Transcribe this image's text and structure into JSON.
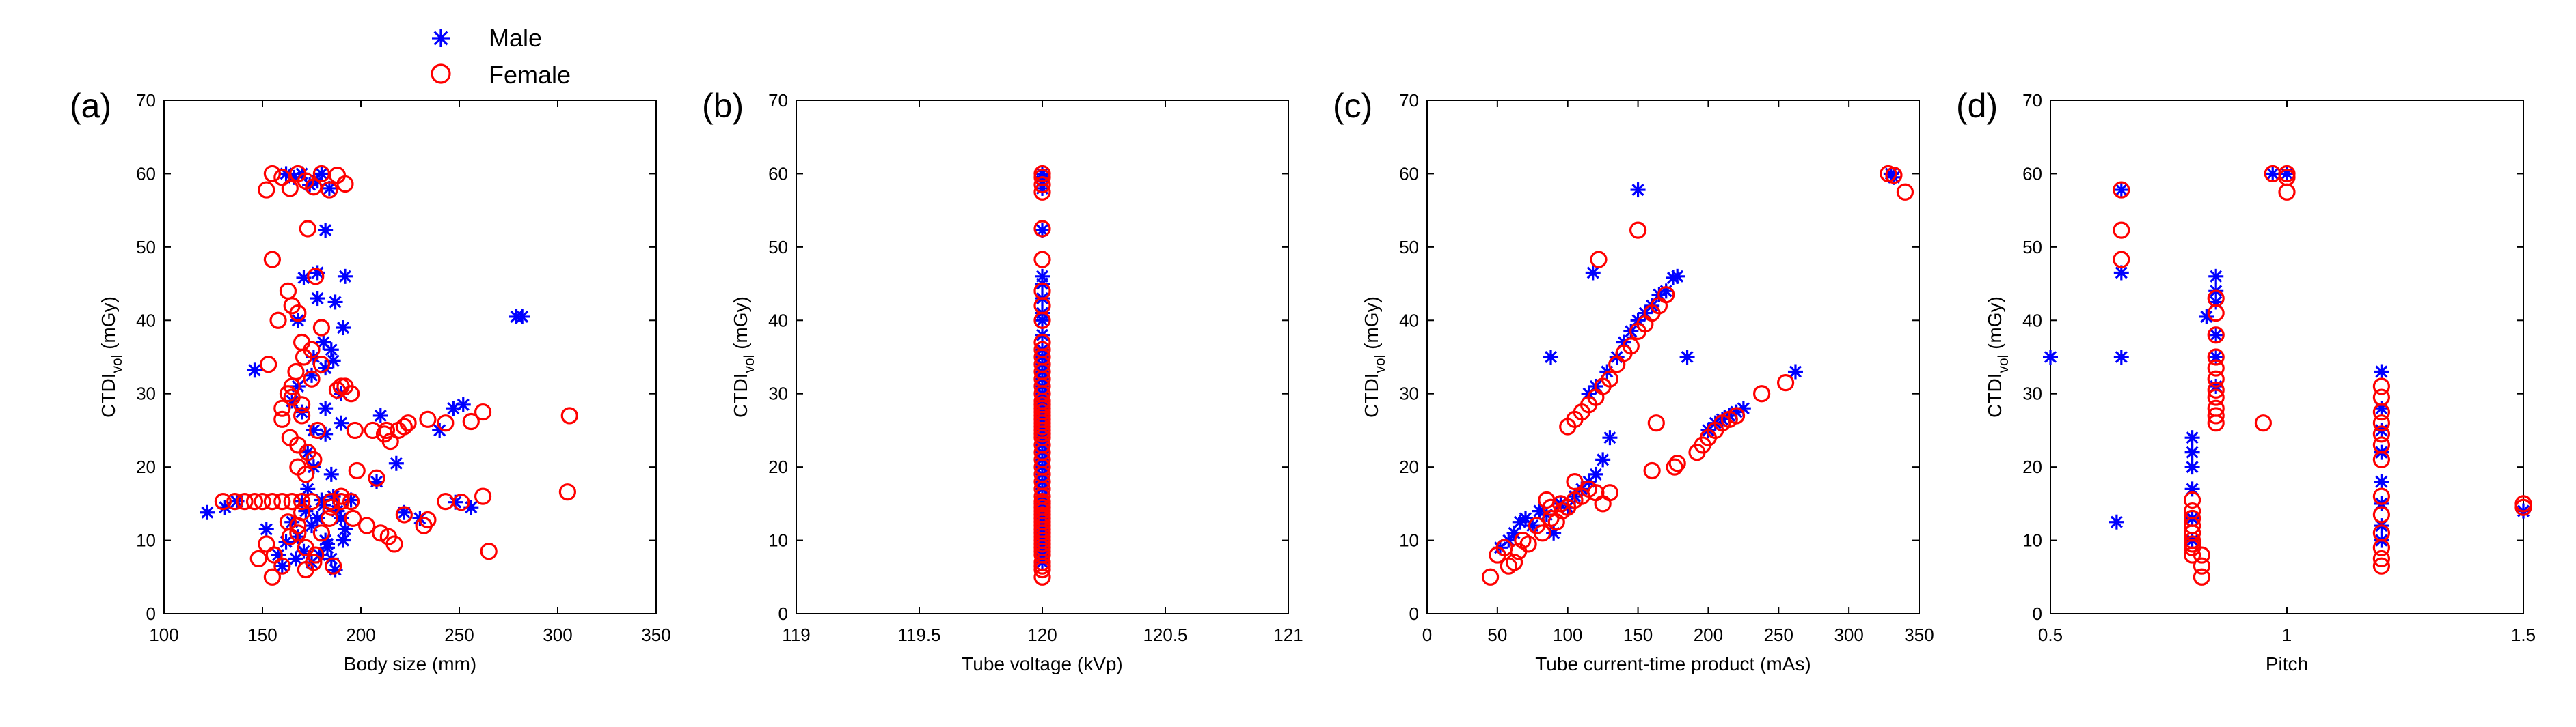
{
  "legend": {
    "location": "top-left",
    "entries": [
      {
        "name": "Male",
        "marker": "star",
        "color": "#0000ff"
      },
      {
        "name": "Female",
        "marker": "circle",
        "color": "#ff0000"
      }
    ]
  },
  "chart_data": [
    {
      "panel_label": "(a)",
      "type": "scatter",
      "xlabel": "Body size (mm)",
      "ylabel_main": "CTDI",
      "ylabel_sub": "vol",
      "ylabel_unit": " (mGy)",
      "xlim": [
        100,
        350
      ],
      "ylim": [
        0,
        70
      ],
      "xticks": [
        100,
        150,
        200,
        250,
        300,
        350
      ],
      "xtick_labels": [
        "100",
        "150",
        "200",
        "250",
        "300",
        "350"
      ],
      "yticks": [
        0,
        10,
        20,
        30,
        40,
        50,
        60,
        70
      ],
      "ytick_labels": [
        "0",
        "10",
        "20",
        "30",
        "40",
        "50",
        "60",
        "70"
      ],
      "series": [
        {
          "name": "Male",
          "x": [
            122,
            131,
            137,
            146,
            152,
            158,
            162,
            165,
            168,
            170,
            172,
            175,
            178,
            180,
            182,
            183,
            185,
            186,
            188,
            190,
            192,
            195,
            210,
            222,
            240,
            247,
            252,
            279,
            282,
            162,
            166,
            170,
            174,
            178,
            180,
            184,
            168,
            175,
            182,
            186,
            190,
            176,
            181,
            185,
            165,
            170,
            176,
            182,
            190,
            171,
            178,
            182,
            187,
            173,
            182,
            176,
            191,
            185,
            168,
            178,
            192,
            208,
            218,
            230,
            248,
            256,
            160,
            167,
            171,
            175,
            179,
            183,
            187,
            191,
            173,
            181
          ],
          "y": [
            13.8,
            14.5,
            15.3,
            33.2,
            11.5,
            8.0,
            9.8,
            12.5,
            10.5,
            15.3,
            14.0,
            12.0,
            13.0,
            15.5,
            10.0,
            9.0,
            7.5,
            16.0,
            14.0,
            13.0,
            11.5,
            15.5,
            27.0,
            13.8,
            25.0,
            28.0,
            28.5,
            40.5,
            40.5,
            60.0,
            59.5,
            60.0,
            58.5,
            59.0,
            60.0,
            58.0,
            31.0,
            32.5,
            33.5,
            34.5,
            30.0,
            35.0,
            37.0,
            36.0,
            29.0,
            27.5,
            25.0,
            28.0,
            26.0,
            45.8,
            46.5,
            52.3,
            42.5,
            22.0,
            24.5,
            20.0,
            39.0,
            19.0,
            40.0,
            43.0,
            46.0,
            18.0,
            20.5,
            13.0,
            15.2,
            14.5,
            6.5,
            7.5,
            8.5,
            7.0,
            8.0,
            9.5,
            6.0,
            10.0,
            17.0,
            14.8
          ]
        },
        {
          "name": "Female",
          "x": [
            130,
            136,
            141,
            146,
            150,
            155,
            160,
            165,
            170,
            175,
            185,
            190,
            195,
            148,
            152,
            156,
            160,
            164,
            168,
            172,
            176,
            180,
            184,
            152,
            155,
            160,
            164,
            168,
            172,
            176,
            180,
            184,
            188,
            192,
            163,
            167,
            171,
            160,
            165,
            170,
            175,
            180,
            164,
            168,
            173,
            178,
            168,
            172,
            176,
            165,
            170,
            175,
            190,
            195,
            160,
            170,
            180,
            155,
            165,
            153,
            158,
            163,
            168,
            173,
            177,
            163,
            170,
            168,
            155,
            172,
            177,
            185,
            190,
            196,
            203,
            208,
            213,
            219,
            224,
            234,
            243,
            256,
            262,
            210,
            214,
            222,
            234,
            262,
            206,
            212,
            217,
            215,
            222,
            232,
            265,
            251,
            243,
            306,
            305,
            197,
            198,
            188,
            192,
            186
          ],
          "y": [
            15.3,
            15.3,
            15.3,
            15.3,
            15.3,
            15.3,
            15.3,
            15.3,
            15.3,
            15.3,
            15.3,
            15.3,
            15.3,
            7.5,
            9.5,
            8.0,
            6.5,
            10.5,
            12.0,
            9.0,
            7.0,
            11.0,
            13.0,
            57.8,
            60.0,
            59.5,
            58.0,
            60.0,
            59.0,
            58.2,
            60.0,
            57.8,
            59.8,
            58.6,
            30.0,
            33.0,
            35.0,
            28.0,
            31.0,
            27.0,
            32.0,
            34.0,
            24.0,
            23.0,
            22.0,
            25.0,
            20.0,
            19.0,
            21.0,
            29.5,
            28.5,
            36.0,
            31.0,
            30.0,
            26.5,
            37.0,
            39.0,
            48.3,
            42.0,
            34.0,
            40.0,
            44.0,
            41.0,
            52.5,
            46.0,
            12.5,
            13.8,
            11.0,
            5.0,
            6.0,
            8.0,
            14.5,
            16.0,
            13.0,
            12.0,
            18.5,
            25.0,
            25.0,
            26.0,
            26.5,
            26.0,
            26.2,
            27.5,
            11.0,
            10.5,
            13.5,
            12.8,
            16.0,
            25.0,
            24.5,
            9.5,
            23.5,
            25.5,
            12.0,
            8.5,
            15.2,
            15.3,
            27.0,
            16.6,
            25.0,
            19.5,
            30.5,
            31.0,
            6.5
          ]
        }
      ]
    },
    {
      "panel_label": "(b)",
      "type": "scatter",
      "xlabel": "Tube voltage (kVp)",
      "ylabel_main": "CTDI",
      "ylabel_sub": "vol",
      "ylabel_unit": " (mGy)",
      "xlim": [
        119,
        121
      ],
      "ylim": [
        0,
        70
      ],
      "xticks": [
        119,
        119.5,
        120,
        120.5,
        121
      ],
      "xtick_labels": [
        "119",
        "119.5",
        "120",
        "120.5",
        "121"
      ],
      "yticks": [
        0,
        10,
        20,
        30,
        40,
        50,
        60,
        70
      ],
      "ytick_labels": [
        "0",
        "10",
        "20",
        "30",
        "40",
        "50",
        "60",
        "70"
      ],
      "series": [
        {
          "name": "Male",
          "x": [
            120,
            120,
            120,
            120,
            120,
            120,
            120,
            120,
            120,
            120,
            120,
            120,
            120,
            120,
            120,
            120,
            120,
            120,
            120,
            120,
            120,
            120,
            120,
            120,
            120,
            120,
            120,
            120,
            120,
            120,
            120,
            120,
            120,
            120,
            120,
            120,
            120,
            120,
            120,
            120
          ],
          "y": [
            60,
            59,
            58,
            52.3,
            46,
            45,
            43,
            41,
            40,
            38,
            36,
            35,
            34,
            33,
            32,
            31,
            30,
            29,
            28,
            27,
            26,
            25,
            24,
            23,
            22,
            21,
            20,
            19,
            18,
            17,
            16,
            15,
            14,
            13,
            12,
            11,
            10,
            9,
            8,
            7
          ]
        },
        {
          "name": "Female",
          "x": [
            120,
            120,
            120,
            120,
            120,
            120,
            120,
            120,
            120,
            120,
            120,
            120,
            120,
            120,
            120,
            120,
            120,
            120,
            120,
            120,
            120,
            120,
            120,
            120,
            120,
            120,
            120,
            120,
            120,
            120,
            120,
            120,
            120,
            120,
            120,
            120,
            120,
            120,
            120,
            120,
            120,
            120,
            120,
            120,
            120,
            120,
            120,
            120,
            120,
            120,
            120,
            120,
            120,
            120,
            120,
            120
          ],
          "y": [
            60,
            59.5,
            58.5,
            57.5,
            52.5,
            48.3,
            44,
            42,
            40,
            37,
            36,
            35,
            34,
            33,
            32,
            31,
            30,
            29,
            28.5,
            28,
            27.5,
            27,
            26.5,
            26,
            25.5,
            25,
            24.5,
            24,
            23,
            22,
            21,
            20,
            19,
            18,
            17,
            16,
            15.3,
            15,
            14.5,
            14,
            13.5,
            13,
            12.5,
            12,
            11.5,
            11,
            10.5,
            10,
            9.5,
            9,
            8.5,
            8,
            7,
            6.5,
            6,
            5
          ]
        }
      ]
    },
    {
      "panel_label": "(c)",
      "type": "scatter",
      "xlabel": "Tube current-time product (mAs)",
      "ylabel_main": "CTDI",
      "ylabel_sub": "vol",
      "ylabel_unit": " (mGy)",
      "xlim": [
        0,
        350
      ],
      "ylim": [
        0,
        70
      ],
      "xticks": [
        0,
        50,
        100,
        150,
        200,
        250,
        300,
        350
      ],
      "xtick_labels": [
        "0",
        "50",
        "100",
        "150",
        "200",
        "250",
        "300",
        "350"
      ],
      "yticks": [
        0,
        10,
        20,
        30,
        40,
        50,
        60,
        70
      ],
      "ytick_labels": [
        "0",
        "10",
        "20",
        "30",
        "40",
        "50",
        "60",
        "70"
      ],
      "series": [
        {
          "name": "Male",
          "x": [
            52,
            58,
            62,
            66,
            70,
            75,
            80,
            85,
            95,
            100,
            105,
            110,
            115,
            120,
            125,
            130,
            115,
            120,
            128,
            135,
            140,
            145,
            150,
            155,
            160,
            165,
            170,
            175,
            178,
            88,
            118,
            150,
            185,
            200,
            205,
            210,
            215,
            220,
            225,
            262,
            330,
            332,
            90
          ],
          "y": [
            9,
            10,
            11,
            12.5,
            13,
            12,
            14,
            13.5,
            15,
            14.5,
            16,
            17,
            18,
            19,
            21,
            24,
            30,
            31,
            33,
            35,
            37,
            38.5,
            40,
            41,
            42,
            43.5,
            44,
            45.8,
            46,
            35,
            46.5,
            57.8,
            35,
            25,
            26,
            26.5,
            27,
            27.5,
            28,
            33,
            60,
            59.5,
            11
          ]
        },
        {
          "name": "Female",
          "x": [
            45,
            50,
            55,
            58,
            62,
            65,
            68,
            72,
            78,
            82,
            88,
            92,
            96,
            100,
            105,
            110,
            115,
            120,
            125,
            130,
            100,
            105,
            110,
            115,
            120,
            125,
            130,
            135,
            140,
            145,
            150,
            155,
            160,
            165,
            170,
            122,
            150,
            328,
            332,
            340,
            160,
            178,
            176,
            192,
            196,
            200,
            205,
            210,
            215,
            220,
            238,
            255,
            163,
            105,
            85,
            95,
            88
          ],
          "y": [
            5,
            8,
            9,
            6.5,
            7,
            8.5,
            10,
            9.5,
            12,
            11,
            13,
            12.5,
            14,
            14.5,
            15.5,
            16,
            17,
            16.5,
            15,
            16.5,
            25.5,
            26.5,
            27.5,
            28.5,
            29.5,
            31,
            32,
            34,
            35.5,
            36.5,
            38.5,
            39.5,
            41,
            42,
            43.5,
            48.3,
            52.3,
            60,
            59.8,
            57.5,
            19.5,
            20.5,
            20,
            22,
            23,
            24,
            25,
            26,
            26.5,
            27,
            30,
            31.5,
            26,
            18,
            15.5,
            15,
            14.5
          ]
        }
      ]
    },
    {
      "panel_label": "(d)",
      "type": "scatter",
      "xlabel": "Pitch",
      "ylabel_main": "CTDI",
      "ylabel_sub": "vol",
      "ylabel_unit": " (mGy)",
      "xlim": [
        0.5,
        1.5
      ],
      "ylim": [
        0,
        70
      ],
      "xticks": [
        0.5,
        1,
        1.5
      ],
      "xtick_labels": [
        "0.5",
        "1",
        "1.5"
      ],
      "yticks": [
        0,
        10,
        20,
        30,
        40,
        50,
        60,
        70
      ],
      "ytick_labels": [
        "0",
        "10",
        "20",
        "30",
        "40",
        "50",
        "60",
        "70"
      ],
      "series": [
        {
          "name": "Male",
          "x": [
            0.5,
            0.64,
            0.65,
            0.65,
            0.65,
            0.8,
            0.8,
            0.8,
            0.8,
            0.8,
            0.8,
            0.83,
            0.85,
            0.85,
            0.85,
            0.85,
            0.85,
            0.85,
            0.97,
            1.0,
            1.2,
            1.2,
            1.2,
            1.2,
            1.2,
            1.2,
            1.2,
            1.2,
            1.5
          ],
          "y": [
            35,
            12.5,
            35,
            46.5,
            57.8,
            24,
            22,
            20,
            17,
            13,
            10,
            40.5,
            46,
            44,
            42.5,
            38,
            35,
            31,
            60,
            60,
            33,
            28,
            25,
            22,
            18,
            15,
            12,
            10,
            14
          ]
        },
        {
          "name": "Female",
          "x": [
            0.65,
            0.65,
            0.65,
            0.8,
            0.8,
            0.8,
            0.8,
            0.8,
            0.8,
            0.8,
            0.8,
            0.8,
            0.82,
            0.82,
            0.82,
            0.85,
            0.85,
            0.85,
            0.85,
            0.85,
            0.85,
            0.85,
            0.85,
            0.85,
            0.85,
            0.85,
            0.95,
            0.97,
            1.0,
            1.0,
            1.0,
            1.2,
            1.2,
            1.2,
            1.2,
            1.2,
            1.2,
            1.2,
            1.2,
            1.2,
            1.2,
            1.2,
            1.2,
            1.2,
            1.5,
            1.5
          ],
          "y": [
            57.8,
            52.3,
            48.3,
            15.5,
            14,
            13,
            12,
            11,
            10,
            9.5,
            9,
            8,
            8,
            6.5,
            5,
            43,
            41,
            38,
            35,
            33.5,
            32,
            30.5,
            29.5,
            28,
            27,
            26,
            26,
            60,
            60,
            59.5,
            57.5,
            31,
            29.5,
            27.5,
            26,
            24.5,
            23,
            21,
            16,
            13.5,
            11,
            9,
            7.5,
            6.5,
            15,
            14.5
          ]
        }
      ]
    }
  ]
}
